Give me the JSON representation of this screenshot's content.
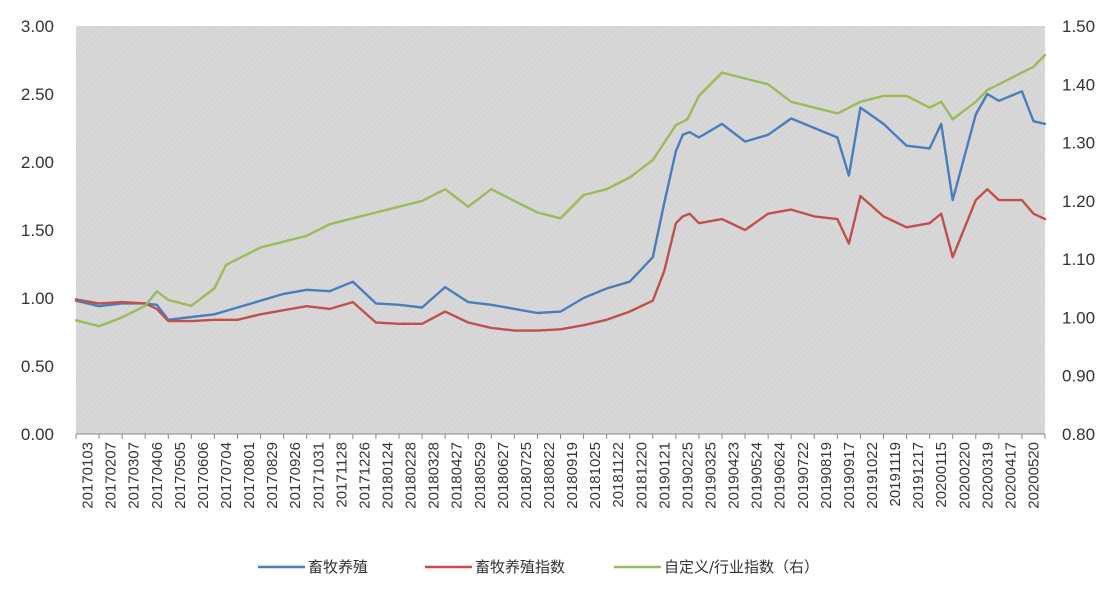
{
  "chart_data": {
    "type": "line",
    "title": "",
    "xlabel": "",
    "ylabel": "",
    "y_left": {
      "min": 0,
      "max": 3,
      "step": 0.5,
      "ticks": [
        "0.00",
        "0.50",
        "1.00",
        "1.50",
        "2.00",
        "2.50",
        "3.00"
      ]
    },
    "y_right": {
      "min": 0.8,
      "max": 1.5,
      "step": 0.1,
      "ticks": [
        "0.80",
        "0.90",
        "1.00",
        "1.10",
        "1.20",
        "1.30",
        "1.40",
        "1.50"
      ]
    },
    "grid": false,
    "legend_position": "bottom",
    "x_tick_labels": [
      "20170103",
      "20170207",
      "20170307",
      "20170406",
      "20170505",
      "20170606",
      "20170704",
      "20170801",
      "20170829",
      "20170926",
      "20171031",
      "20171128",
      "20171226",
      "20180124",
      "20180228",
      "20180328",
      "20180427",
      "20180529",
      "20180627",
      "20180725",
      "20180822",
      "20180919",
      "20181025",
      "20181122",
      "20181220",
      "20190121",
      "20190225",
      "20190325",
      "20190423",
      "20190524",
      "20190624",
      "20190722",
      "20190819",
      "20190917",
      "20191022",
      "20191119",
      "20191217",
      "20200115",
      "20200220",
      "20200319",
      "20200417",
      "20200520"
    ],
    "x_range": [
      0,
      42
    ],
    "series": [
      {
        "name": "畜牧养殖",
        "axis": "left",
        "color": "#4a7ebb",
        "x": [
          0,
          1,
          2,
          3,
          3.5,
          4,
          5,
          6,
          7,
          8,
          9,
          10,
          11,
          12,
          13,
          14,
          15,
          16,
          17,
          18,
          19,
          20,
          21,
          22,
          23,
          24,
          25,
          25.5,
          26,
          26.3,
          26.6,
          27,
          28,
          29,
          30,
          31,
          32,
          33,
          33.5,
          34,
          35,
          36,
          37,
          37.5,
          38,
          39,
          39.5,
          40,
          41,
          41.5,
          42
        ],
        "y": [
          0.98,
          0.94,
          0.96,
          0.96,
          0.95,
          0.84,
          0.86,
          0.88,
          0.93,
          0.98,
          1.03,
          1.06,
          1.05,
          1.12,
          0.96,
          0.95,
          0.93,
          1.08,
          0.97,
          0.95,
          0.92,
          0.89,
          0.9,
          1.0,
          1.07,
          1.12,
          1.3,
          1.7,
          2.08,
          2.2,
          2.22,
          2.18,
          2.28,
          2.15,
          2.2,
          2.32,
          2.25,
          2.18,
          1.9,
          2.4,
          2.28,
          2.12,
          2.1,
          2.28,
          1.72,
          2.35,
          2.5,
          2.45,
          2.52,
          2.3,
          2.28
        ]
      },
      {
        "name": "畜牧养殖指数",
        "axis": "left",
        "color": "#c0504d",
        "x": [
          0,
          1,
          2,
          3,
          3.5,
          4,
          5,
          6,
          7,
          8,
          9,
          10,
          11,
          12,
          13,
          14,
          15,
          16,
          17,
          18,
          19,
          20,
          21,
          22,
          23,
          24,
          25,
          25.5,
          26,
          26.3,
          26.6,
          27,
          28,
          29,
          30,
          31,
          32,
          33,
          33.5,
          34,
          35,
          36,
          37,
          37.5,
          38,
          39,
          39.5,
          40,
          41,
          41.5,
          42
        ],
        "y": [
          0.99,
          0.96,
          0.97,
          0.96,
          0.92,
          0.83,
          0.83,
          0.84,
          0.84,
          0.88,
          0.91,
          0.94,
          0.92,
          0.97,
          0.82,
          0.81,
          0.81,
          0.9,
          0.82,
          0.78,
          0.76,
          0.76,
          0.77,
          0.8,
          0.84,
          0.9,
          0.98,
          1.2,
          1.55,
          1.6,
          1.62,
          1.55,
          1.58,
          1.5,
          1.62,
          1.65,
          1.6,
          1.58,
          1.4,
          1.75,
          1.6,
          1.52,
          1.55,
          1.62,
          1.3,
          1.72,
          1.8,
          1.72,
          1.72,
          1.62,
          1.58
        ]
      },
      {
        "name": "自定义/行业指数（右）",
        "axis": "right",
        "color": "#9bbb59",
        "x": [
          0,
          1,
          2,
          3,
          3.5,
          4,
          5,
          6,
          6.5,
          7,
          8,
          9,
          10,
          11,
          12,
          13,
          14,
          15,
          16,
          17,
          18,
          19,
          20,
          21,
          22,
          23,
          24,
          25,
          25.5,
          26,
          26.5,
          27,
          28,
          29,
          30,
          31,
          32,
          33,
          34,
          35,
          36,
          37,
          37.5,
          38,
          39,
          39.5,
          40,
          41,
          41.5,
          42
        ],
        "y": [
          0.995,
          0.985,
          1.0,
          1.02,
          1.045,
          1.03,
          1.02,
          1.05,
          1.09,
          1.1,
          1.12,
          1.13,
          1.14,
          1.16,
          1.17,
          1.18,
          1.19,
          1.2,
          1.22,
          1.19,
          1.22,
          1.2,
          1.18,
          1.17,
          1.21,
          1.22,
          1.24,
          1.27,
          1.3,
          1.33,
          1.34,
          1.38,
          1.42,
          1.41,
          1.4,
          1.37,
          1.36,
          1.35,
          1.37,
          1.38,
          1.38,
          1.36,
          1.37,
          1.34,
          1.37,
          1.39,
          1.4,
          1.42,
          1.43,
          1.45
        ]
      }
    ]
  },
  "legend": {
    "items": [
      {
        "label": "畜牧养殖",
        "color": "#4a7ebb"
      },
      {
        "label": "畜牧养殖指数",
        "color": "#c0504d"
      },
      {
        "label": "自定义/行业指数（右）",
        "color": "#9bbb59"
      }
    ]
  }
}
